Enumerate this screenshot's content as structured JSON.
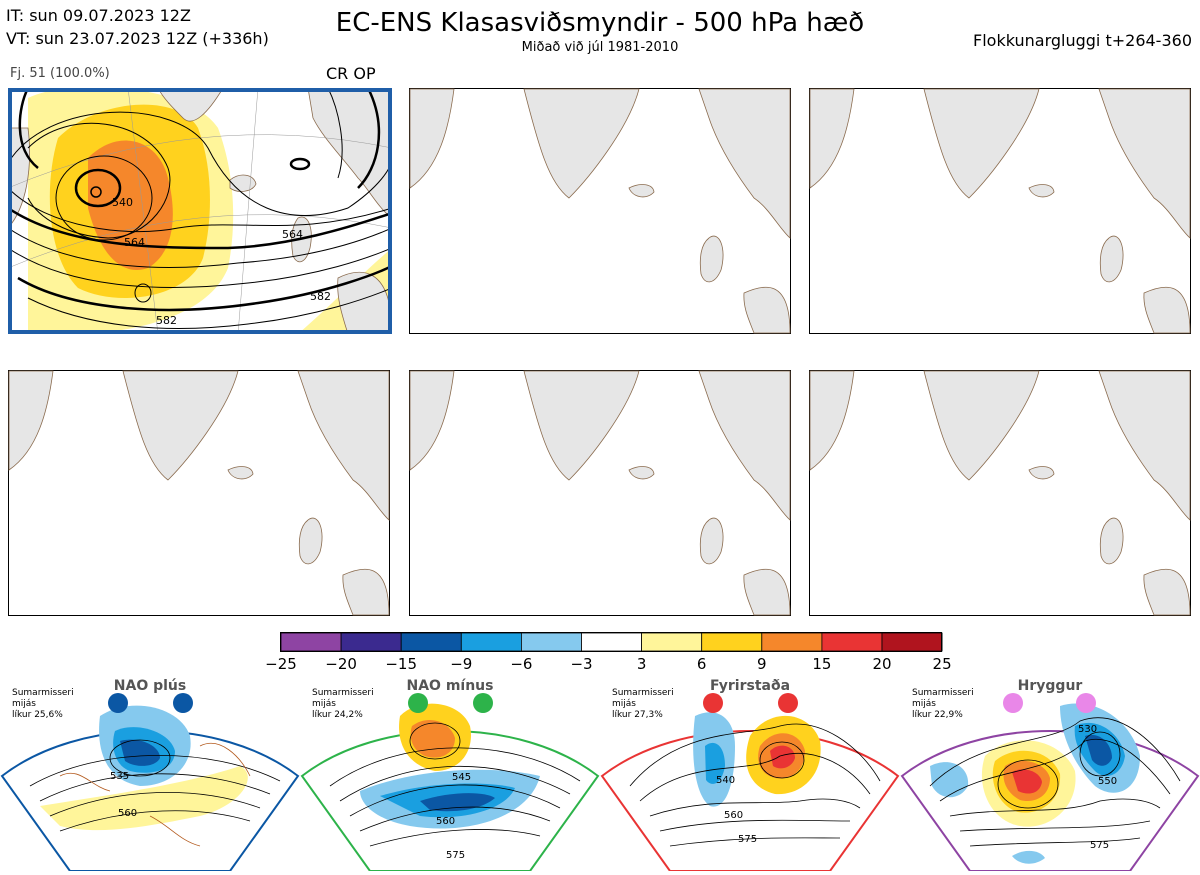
{
  "header": {
    "init_time": "IT: sun 09.07.2023 12Z",
    "valid_time": "VT: sun 23.07.2023 12Z  (+336h)",
    "title": "EC-ENS Klasasviðsmyndir - 500 hPa hæð",
    "subtitle": "Miðað við júl 1981-2010",
    "window": "Flokkunargluggi t+264-360"
  },
  "panels": [
    {
      "members": "Fj. 51 (100.0%)",
      "label": "CR OP",
      "highlight": true,
      "border_color": "#1f5ea8"
    },
    {
      "members": "",
      "label": "",
      "highlight": false
    },
    {
      "members": "",
      "label": "",
      "highlight": false
    },
    {
      "members": "",
      "label": "",
      "highlight": false
    },
    {
      "members": "",
      "label": "",
      "highlight": false
    },
    {
      "members": "",
      "label": "",
      "highlight": false
    }
  ],
  "main_map_contours": [
    "540",
    "564",
    "564",
    "582",
    "582"
  ],
  "colorbar": {
    "ticks": [
      "−25",
      "−20",
      "−15",
      "−9",
      "−6",
      "−3",
      "3",
      "6",
      "9",
      "15",
      "20",
      "25"
    ],
    "colors": [
      "#8e44a3",
      "#3b2a8f",
      "#0b57a4",
      "#1a9fe0",
      "#85c9ee",
      "#ffffff",
      "#fff59a",
      "#ffd21e",
      "#f5872b",
      "#e93434",
      "#b0141e"
    ]
  },
  "regimes": [
    {
      "name": "NAO plús",
      "note1": "Sumarmisseri",
      "note2": "mijás",
      "note3": "líkur 25,6%",
      "color": "#0b57a4",
      "contours": [
        "535",
        "560"
      ]
    },
    {
      "name": "NAO mínus",
      "note1": "Sumarmisseri",
      "note2": "mijás",
      "note3": "líkur 24,2%",
      "color": "#2db34a",
      "contours": [
        "545",
        "560",
        "575"
      ]
    },
    {
      "name": "Fyrirstaða",
      "note1": "Sumarmisseri",
      "note2": "mijás",
      "note3": "líkur 27,3%",
      "color": "#e93434",
      "contours": [
        "540",
        "560",
        "575"
      ]
    },
    {
      "name": "Hryggur",
      "note1": "Sumarmisseri",
      "note2": "mijás",
      "note3": "líkur 22,9%",
      "color": "#e987e8",
      "contours": [
        "530",
        "550",
        "575"
      ]
    }
  ]
}
